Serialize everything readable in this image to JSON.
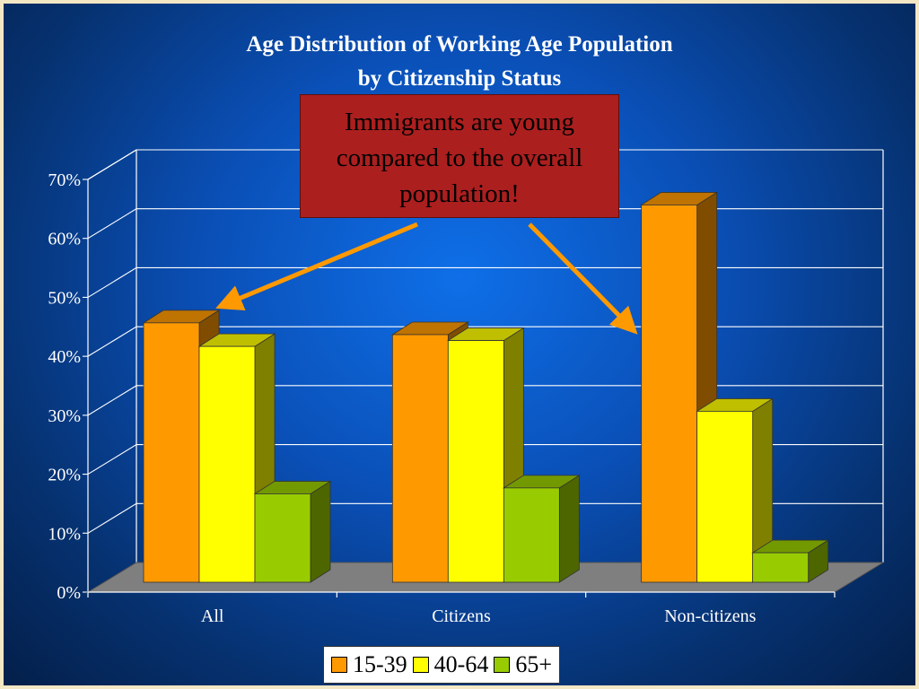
{
  "chart_data": {
    "type": "bar",
    "title": "Age Distribution of Working Age Population",
    "subtitle": "by Citizenship Status",
    "categories": [
      "All",
      "Citizens",
      "Non-citizens"
    ],
    "series": [
      {
        "name": "15-39",
        "values": [
          44,
          42,
          64
        ],
        "color": "#ff9900"
      },
      {
        "name": "40-64",
        "values": [
          40,
          41,
          29
        ],
        "color": "#ffff00"
      },
      {
        "name": "65+",
        "values": [
          15,
          16,
          5
        ],
        "color": "#99cc00"
      }
    ],
    "ylim": [
      0,
      70
    ],
    "yticks": [
      "0%",
      "10%",
      "20%",
      "30%",
      "40%",
      "50%",
      "60%",
      "70%"
    ],
    "grid": true,
    "legend": "bottom",
    "annotation": "Immigrants are young compared to the overall population!"
  }
}
